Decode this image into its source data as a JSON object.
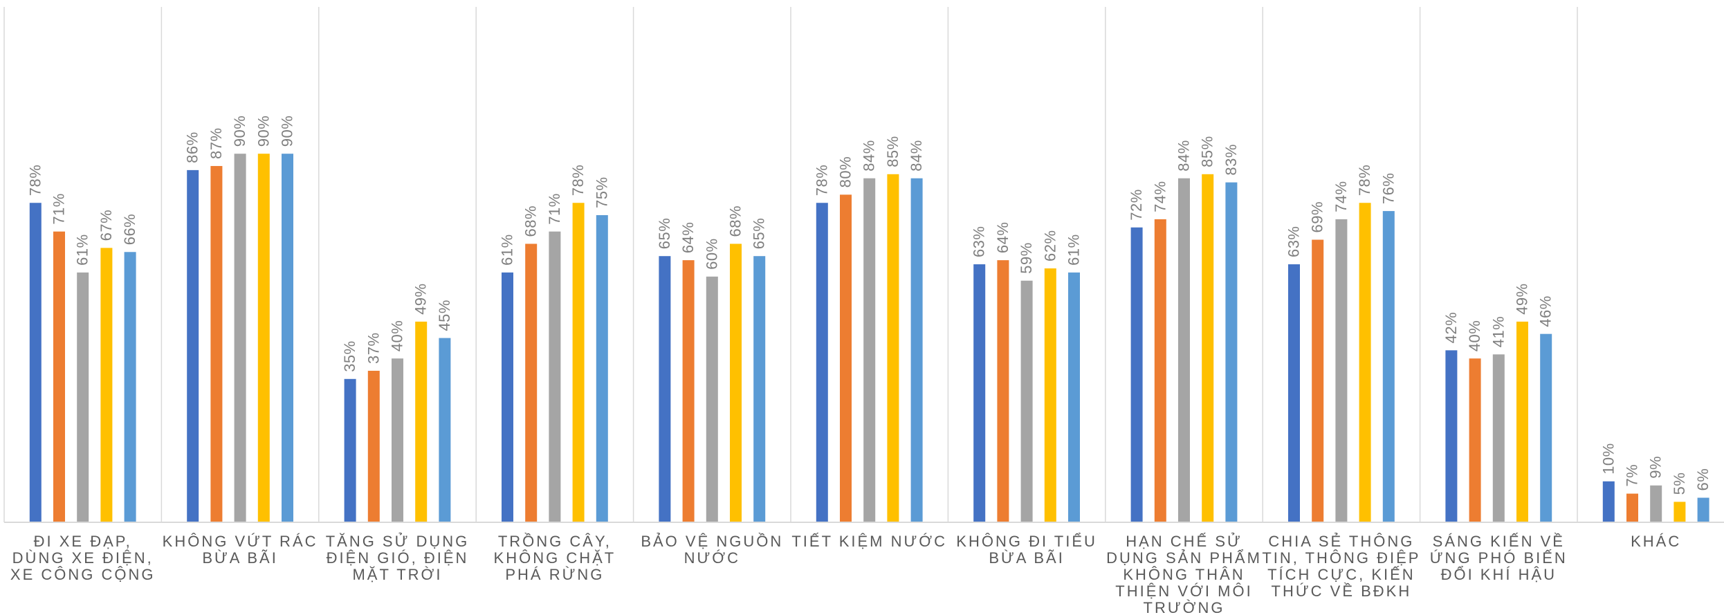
{
  "chart_data": {
    "type": "bar",
    "categories": [
      [
        "ĐI XE ĐẠP,",
        "DÙNG XE ĐIỆN,",
        "XE CÔNG CỘNG"
      ],
      [
        "KHÔNG VỨT RÁC",
        "BỪA BÃI"
      ],
      [
        "TĂNG SỬ DỤNG",
        "ĐIỆN GIÓ, ĐIỆN",
        "MẶT TRỜI"
      ],
      [
        "TRỒNG CÂY,",
        "KHÔNG CHẶT",
        "PHÁ RỪNG"
      ],
      [
        "BẢO VỆ NGUỒN",
        "NƯỚC"
      ],
      [
        "TIẾT KIỆM NƯỚC"
      ],
      [
        "KHÔNG ĐI TIỂU",
        "BỪA BÃI"
      ],
      [
        "HẠN CHẾ SỬ",
        "DỤNG SẢN PHẨM",
        "KHÔNG THÂN",
        "THIỆN VỚI MÔI",
        "TRƯỜNG"
      ],
      [
        "CHIA SẺ THÔNG",
        "TIN, THÔNG ĐIỆP",
        "TÍCH CỰC, KIẾN",
        "THỨC VỀ BĐKH"
      ],
      [
        "SÁNG KIẾN VỀ",
        "ỨNG PHÓ BIẾN",
        "ĐỔI KHÍ HẬU"
      ],
      [
        "KHÁC"
      ]
    ],
    "series": [
      {
        "color": "#4472c4",
        "values": [
          78,
          86,
          35,
          61,
          65,
          78,
          63,
          72,
          63,
          42,
          10
        ]
      },
      {
        "color": "#ed7d31",
        "values": [
          71,
          87,
          37,
          68,
          64,
          80,
          64,
          74,
          69,
          40,
          7
        ]
      },
      {
        "color": "#a5a5a5",
        "values": [
          61,
          90,
          40,
          71,
          60,
          84,
          59,
          84,
          74,
          41,
          9
        ]
      },
      {
        "color": "#ffc000",
        "values": [
          67,
          90,
          49,
          78,
          68,
          85,
          62,
          85,
          78,
          49,
          5
        ]
      },
      {
        "color": "#5b9bd5",
        "values": [
          66,
          90,
          45,
          75,
          65,
          84,
          61,
          83,
          76,
          46,
          6
        ]
      }
    ],
    "value_suffix": "%",
    "ylim": [
      0,
      100
    ],
    "grid": false,
    "legend": "none",
    "xlabel": "",
    "ylabel": ""
  }
}
